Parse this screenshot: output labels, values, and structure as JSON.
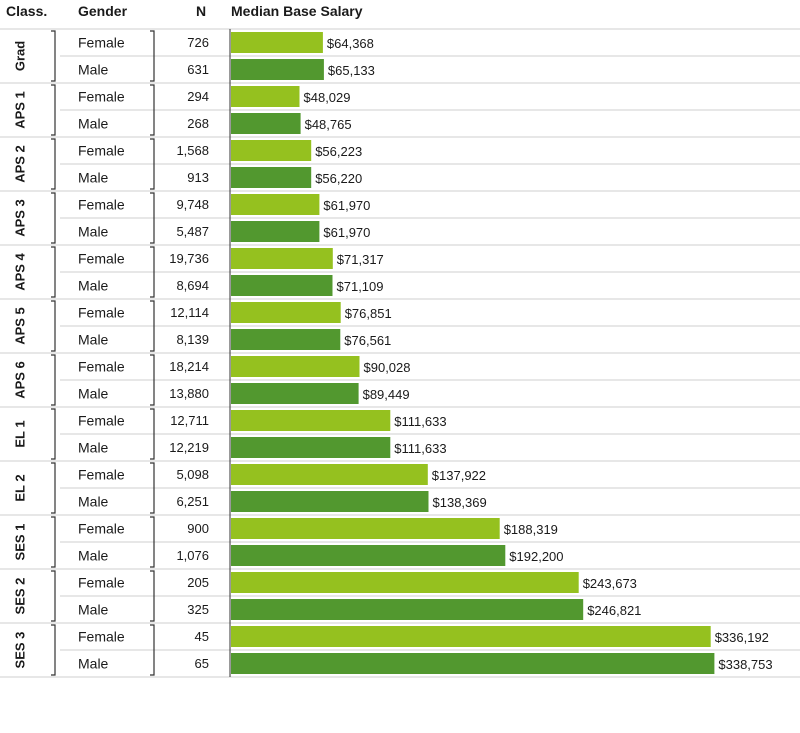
{
  "headers": {
    "classification": "Class.",
    "gender": "Gender",
    "count": "N",
    "value": "Median Base Salary"
  },
  "colors": {
    "female": "#95c11f",
    "male": "#52982f",
    "grid": "#cfcfcf",
    "bracket": "#333333"
  },
  "chart_data": {
    "type": "bar",
    "orientation": "horizontal",
    "title": "",
    "xlabel": "",
    "ylabel": "",
    "xlim": [
      0,
      342000
    ],
    "grid": false,
    "legend": "none",
    "series": [
      {
        "name": "Female",
        "color": "#95c11f"
      },
      {
        "name": "Male",
        "color": "#52982f"
      }
    ],
    "groups": [
      {
        "class": "Grad",
        "rows": [
          {
            "gender": "Female",
            "n": "726",
            "value": 64368,
            "label": "$64,368"
          },
          {
            "gender": "Male",
            "n": "631",
            "value": 65133,
            "label": "$65,133"
          }
        ]
      },
      {
        "class": "APS 1",
        "rows": [
          {
            "gender": "Female",
            "n": "294",
            "value": 48029,
            "label": "$48,029"
          },
          {
            "gender": "Male",
            "n": "268",
            "value": 48765,
            "label": "$48,765"
          }
        ]
      },
      {
        "class": "APS 2",
        "rows": [
          {
            "gender": "Female",
            "n": "1,568",
            "value": 56223,
            "label": "$56,223"
          },
          {
            "gender": "Male",
            "n": "913",
            "value": 56220,
            "label": "$56,220"
          }
        ]
      },
      {
        "class": "APS 3",
        "rows": [
          {
            "gender": "Female",
            "n": "9,748",
            "value": 61970,
            "label": "$61,970"
          },
          {
            "gender": "Male",
            "n": "5,487",
            "value": 61970,
            "label": "$61,970"
          }
        ]
      },
      {
        "class": "APS 4",
        "rows": [
          {
            "gender": "Female",
            "n": "19,736",
            "value": 71317,
            "label": "$71,317"
          },
          {
            "gender": "Male",
            "n": "8,694",
            "value": 71109,
            "label": "$71,109"
          }
        ]
      },
      {
        "class": "APS 5",
        "rows": [
          {
            "gender": "Female",
            "n": "12,114",
            "value": 76851,
            "label": "$76,851"
          },
          {
            "gender": "Male",
            "n": "8,139",
            "value": 76561,
            "label": "$76,561"
          }
        ]
      },
      {
        "class": "APS 6",
        "rows": [
          {
            "gender": "Female",
            "n": "18,214",
            "value": 90028,
            "label": "$90,028"
          },
          {
            "gender": "Male",
            "n": "13,880",
            "value": 89449,
            "label": "$89,449"
          }
        ]
      },
      {
        "class": "EL 1",
        "rows": [
          {
            "gender": "Female",
            "n": "12,711",
            "value": 111633,
            "label": "$111,633"
          },
          {
            "gender": "Male",
            "n": "12,219",
            "value": 111633,
            "label": "$111,633"
          }
        ]
      },
      {
        "class": "EL 2",
        "rows": [
          {
            "gender": "Female",
            "n": "5,098",
            "value": 137922,
            "label": "$137,922"
          },
          {
            "gender": "Male",
            "n": "6,251",
            "value": 138369,
            "label": "$138,369"
          }
        ]
      },
      {
        "class": "SES 1",
        "rows": [
          {
            "gender": "Female",
            "n": "900",
            "value": 188319,
            "label": "$188,319"
          },
          {
            "gender": "Male",
            "n": "1,076",
            "value": 192200,
            "label": "$192,200"
          }
        ]
      },
      {
        "class": "SES 2",
        "rows": [
          {
            "gender": "Female",
            "n": "205",
            "value": 243673,
            "label": "$243,673"
          },
          {
            "gender": "Male",
            "n": "325",
            "value": 246821,
            "label": "$246,821"
          }
        ]
      },
      {
        "class": "SES 3",
        "rows": [
          {
            "gender": "Female",
            "n": "45",
            "value": 336192,
            "label": "$336,192"
          },
          {
            "gender": "Male",
            "n": "65",
            "value": 338753,
            "label": "$338,753"
          }
        ]
      }
    ]
  }
}
